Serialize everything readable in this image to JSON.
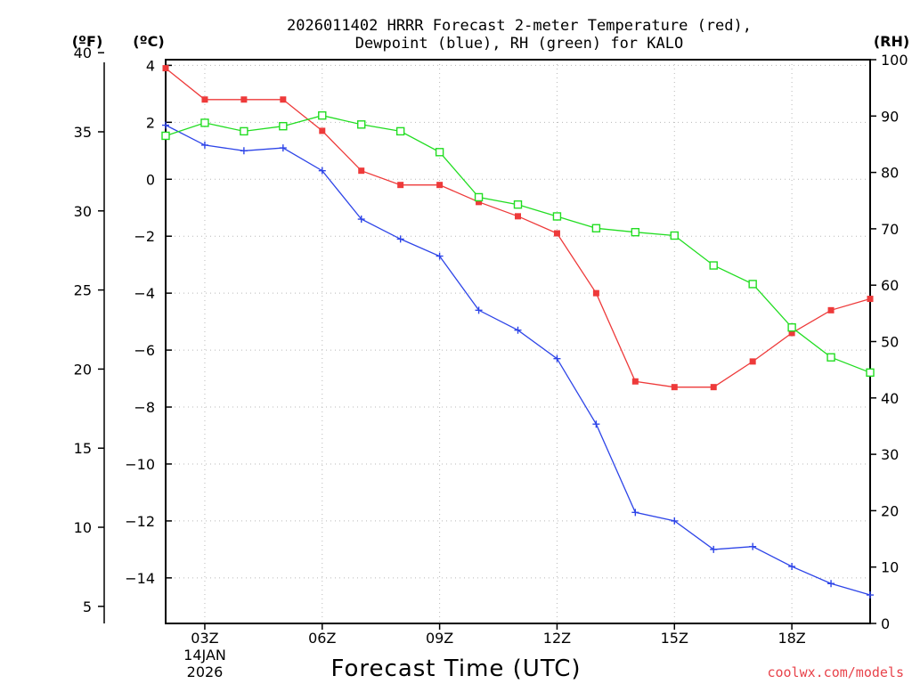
{
  "chart_data": {
    "type": "line",
    "title_line1": "2026011402 HRRR Forecast 2-meter Temperature (red),",
    "title_line2": "Dewpoint (blue), RH (green) for KALO",
    "xlabel": "Forecast Time (UTC)",
    "left_outer_unit": "(ºF)",
    "left_inner_unit": "(ºC)",
    "right_unit": "(RH)",
    "credit": "coolwx.com/models",
    "date_label_line1": "14JAN",
    "date_label_line2": "2026",
    "x_hours": [
      2,
      3,
      4,
      5,
      6,
      7,
      8,
      9,
      10,
      11,
      12,
      13,
      14,
      15,
      16,
      17,
      18,
      19,
      20
    ],
    "x_range": [
      2,
      20
    ],
    "x_ticks": [
      {
        "hour": 3,
        "label": "03Z"
      },
      {
        "hour": 6,
        "label": "06Z"
      },
      {
        "hour": 9,
        "label": "09Z"
      },
      {
        "hour": 12,
        "label": "12Z"
      },
      {
        "hour": 15,
        "label": "15Z"
      },
      {
        "hour": 18,
        "label": "18Z"
      }
    ],
    "celsius_range": [
      -15.6,
      4.2
    ],
    "celsius_ticks": [
      4,
      2,
      0,
      -2,
      -4,
      -6,
      -8,
      -10,
      -12,
      -14
    ],
    "celsius_tick_labels": [
      "4",
      "2",
      "0",
      "−2",
      "−4",
      "−6",
      "−8",
      "−10",
      "−12",
      "−14"
    ],
    "fahrenheit_ticks": [
      40,
      35,
      30,
      25,
      20,
      15,
      10,
      5
    ],
    "fahrenheit_tick_labels": [
      "40",
      "35",
      "30",
      "25",
      "20",
      "15",
      "10",
      "5"
    ],
    "rh_range": [
      0,
      100
    ],
    "rh_ticks": [
      100,
      90,
      80,
      70,
      60,
      50,
      40,
      30,
      20,
      10,
      0
    ],
    "rh_tick_labels": [
      "100",
      "90",
      "80",
      "70",
      "60",
      "50",
      "40",
      "30",
      "20",
      "10",
      "0"
    ],
    "series": [
      {
        "name": "Temperature",
        "unit": "C",
        "color": "#ee3a3a",
        "marker": "filled-square",
        "values": [
          3.9,
          2.8,
          2.8,
          2.8,
          1.7,
          0.3,
          -0.2,
          -0.2,
          -0.8,
          -1.3,
          -1.9,
          -4.0,
          -7.1,
          -7.3,
          -7.3,
          -6.4,
          -5.4,
          -4.6,
          -4.2
        ]
      },
      {
        "name": "Dewpoint",
        "unit": "C",
        "color": "#2e45e8",
        "marker": "plus",
        "values": [
          1.9,
          1.2,
          1.0,
          1.1,
          0.3,
          -1.4,
          -2.1,
          -2.7,
          -4.6,
          -5.3,
          -6.3,
          -8.6,
          -11.7,
          -12.0,
          -13.0,
          -12.9,
          -13.6,
          -14.2,
          -14.6
        ]
      },
      {
        "name": "RH",
        "unit": "%",
        "color": "#22dd22",
        "marker": "open-square",
        "values": [
          86.5,
          88.8,
          87.3,
          88.2,
          90.1,
          88.5,
          87.3,
          83.6,
          75.6,
          74.3,
          72.2,
          70.1,
          69.4,
          68.8,
          63.5,
          60.2,
          52.5,
          47.2,
          44.5
        ]
      }
    ]
  }
}
